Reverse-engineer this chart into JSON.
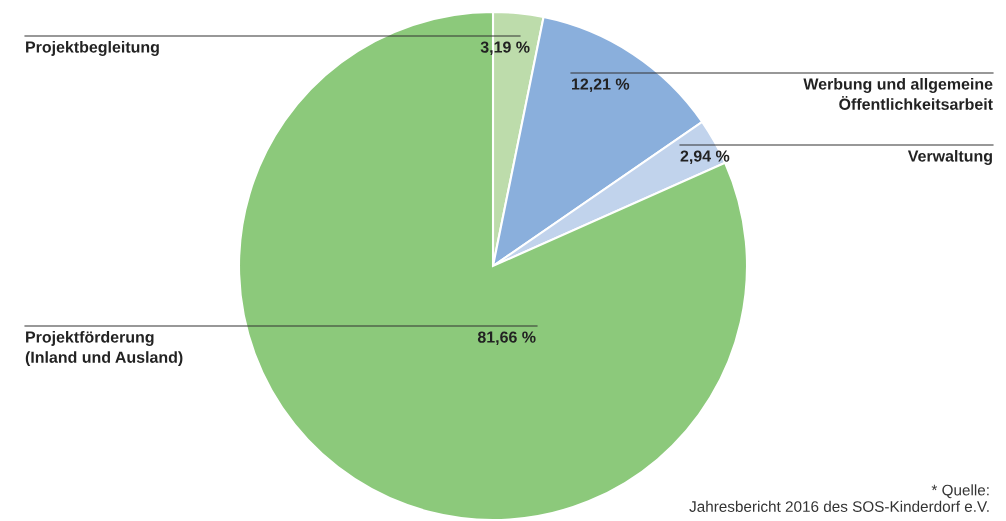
{
  "chart_data": {
    "type": "pie",
    "categories": [
      "Projektbegleitung",
      "Werbung und allgemeine\nÖffentlichkeitsarbeit",
      "Verwaltung",
      "Projektförderung\n(Inland und Ausland)"
    ],
    "values": [
      3.19,
      12.21,
      2.94,
      81.66
    ],
    "value_labels": [
      "3,19 %",
      "12,21 %",
      "2,94 %",
      "81,66 %"
    ],
    "colors": [
      "#bddcab",
      "#8aafdc",
      "#c1d3ec",
      "#8cc97b"
    ],
    "annotations": [
      "* Quelle:\nJahresbericht 2016 des SOS-Kinderdorf e.V."
    ]
  }
}
